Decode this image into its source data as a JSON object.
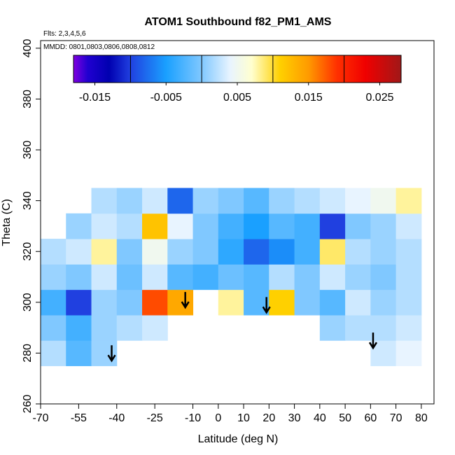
{
  "chart_data": {
    "type": "heatmap",
    "title": "ATOM1 Southbound f82_PM1_AMS",
    "annotations": [
      "Flts: 2,3,4,5,6",
      "MMDD: 0801,0803,0806,0808,0812"
    ],
    "x_label": "Latitude (deg N)",
    "y_label": "Theta (C)",
    "xlim": [
      -70,
      85
    ],
    "ylim": [
      260,
      403
    ],
    "xticks": [
      -70,
      -55,
      -40,
      -25,
      -10,
      0,
      10,
      20,
      30,
      40,
      50,
      60,
      70,
      80
    ],
    "yticks": [
      260,
      280,
      300,
      320,
      340,
      360,
      380,
      400
    ],
    "x": [
      -65,
      -55,
      -45,
      -35,
      -25,
      -15,
      -5,
      5,
      15,
      25,
      35,
      45,
      55,
      65,
      75
    ],
    "y": [
      280,
      290,
      300,
      310,
      320,
      330,
      340
    ],
    "z": [
      [
        0.002,
        -0.002,
        0.001,
        null,
        null,
        null,
        null,
        null,
        null,
        null,
        null,
        null,
        null,
        0.003,
        0.004
      ],
      [
        0,
        -0.003,
        0.001,
        0.002,
        0.003,
        null,
        null,
        null,
        null,
        null,
        null,
        0.001,
        0.002,
        0.002,
        0.003
      ],
      [
        -0.003,
        -0.01,
        0.001,
        0,
        0.018,
        0.014,
        null,
        0.008,
        -0.002,
        0.011,
        0,
        -0.002,
        0.003,
        0.001,
        0.002
      ],
      [
        0.001,
        0,
        0.003,
        -0.001,
        0.003,
        -0.002,
        -0.003,
        -0.001,
        -0.002,
        0.002,
        0,
        0.003,
        0.001,
        0,
        0.002
      ],
      [
        0.002,
        0.003,
        0.008,
        0,
        0.005,
        0.001,
        0,
        -0.004,
        -0.008,
        -0.006,
        -0.003,
        0.009,
        0.002,
        0.001,
        0.002
      ],
      [
        null,
        0.001,
        0.003,
        0.002,
        0.012,
        0.004,
        0,
        -0.003,
        -0.005,
        -0.002,
        -0.003,
        -0.01,
        0,
        0.001,
        0.003
      ],
      [
        null,
        null,
        0.002,
        0.001,
        0.003,
        -0.008,
        0.001,
        0,
        -0.002,
        0.001,
        0.002,
        0.003,
        0.004,
        0.005,
        0.008
      ]
    ],
    "arrows": [
      {
        "lat": -42,
        "theta": 277
      },
      {
        "lat": -13,
        "theta": 298
      },
      {
        "lat": 19,
        "theta": 296
      },
      {
        "lat": 61,
        "theta": 282
      }
    ],
    "colorbar": {
      "lim": [
        -0.018,
        0.028
      ],
      "ticks": [
        -0.015,
        -0.005,
        0.005,
        0.015,
        0.025
      ],
      "dividers": [
        -0.01,
        0,
        0.01,
        0.02
      ],
      "stops": [
        {
          "value": -0.018,
          "color": "#8000e0"
        },
        {
          "value": -0.016,
          "color": "#2000d0"
        },
        {
          "value": -0.013,
          "color": "#0000b0"
        },
        {
          "value": -0.01,
          "color": "#2040e0"
        },
        {
          "value": -0.005,
          "color": "#1aa0ff"
        },
        {
          "value": 0,
          "color": "#80c8ff"
        },
        {
          "value": 0.004,
          "color": "#e8f4ff"
        },
        {
          "value": 0.007,
          "color": "#ffffd0"
        },
        {
          "value": 0.011,
          "color": "#ffd000"
        },
        {
          "value": 0.015,
          "color": "#ff9a00"
        },
        {
          "value": 0.019,
          "color": "#ff3000"
        },
        {
          "value": 0.023,
          "color": "#f00000"
        },
        {
          "value": 0.028,
          "color": "#a01818"
        }
      ]
    }
  }
}
